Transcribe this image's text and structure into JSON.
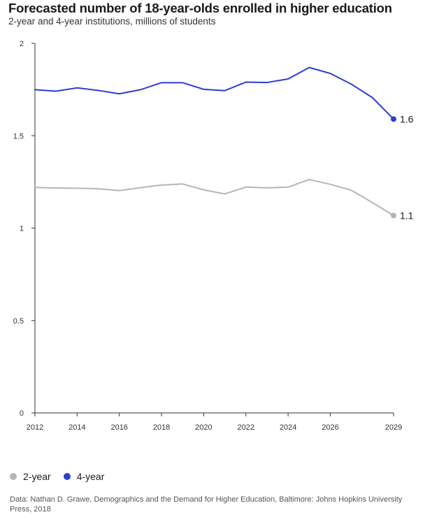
{
  "title": "Forecasted number of 18-year-olds enrolled in higher education",
  "subtitle": "2-year and 4-year institutions, millions of students",
  "source": "Data: Nathan D. Grawe, Demographics and the Demand for Higher Education, Baltimore: Johns Hopkins University Press, 2018",
  "colors": {
    "two_year": "#b5b5b5",
    "four_year": "#2a3fd1",
    "axis": "#333333"
  },
  "chart_data": {
    "type": "line",
    "title": "Forecasted number of 18-year-olds enrolled in higher education",
    "subtitle": "2-year and 4-year institutions, millions of students",
    "xlabel": "",
    "ylabel": "",
    "x": [
      2012,
      2013,
      2014,
      2015,
      2016,
      2017,
      2018,
      2019,
      2020,
      2021,
      2022,
      2023,
      2024,
      2025,
      2026,
      2027,
      2028,
      2029
    ],
    "x_ticks": [
      2012,
      2014,
      2016,
      2018,
      2020,
      2022,
      2024,
      2026,
      2029
    ],
    "ylim": [
      0,
      2
    ],
    "y_ticks": [
      0,
      0.5,
      1,
      1.5,
      2
    ],
    "y_tick_labels": [
      "0",
      "0.5",
      "1",
      "1.5",
      "2"
    ],
    "grid": false,
    "legend_position": "bottom-left",
    "series": [
      {
        "name": "2-year",
        "color": "#b5b5b5",
        "end_label": "1.1",
        "values": [
          1.22,
          1.217,
          1.216,
          1.213,
          1.203,
          1.219,
          1.233,
          1.239,
          1.207,
          1.185,
          1.222,
          1.218,
          1.222,
          1.263,
          1.237,
          1.205,
          1.138,
          1.068
        ]
      },
      {
        "name": "4-year",
        "color": "#2a3fd1",
        "end_label": "1.6",
        "values": [
          1.749,
          1.741,
          1.759,
          1.745,
          1.727,
          1.749,
          1.787,
          1.787,
          1.751,
          1.744,
          1.79,
          1.788,
          1.807,
          1.869,
          1.837,
          1.779,
          1.706,
          1.59
        ]
      }
    ]
  },
  "legend": [
    {
      "label": "2-year",
      "color": "#b5b5b5"
    },
    {
      "label": "4-year",
      "color": "#2a3fd1"
    }
  ]
}
